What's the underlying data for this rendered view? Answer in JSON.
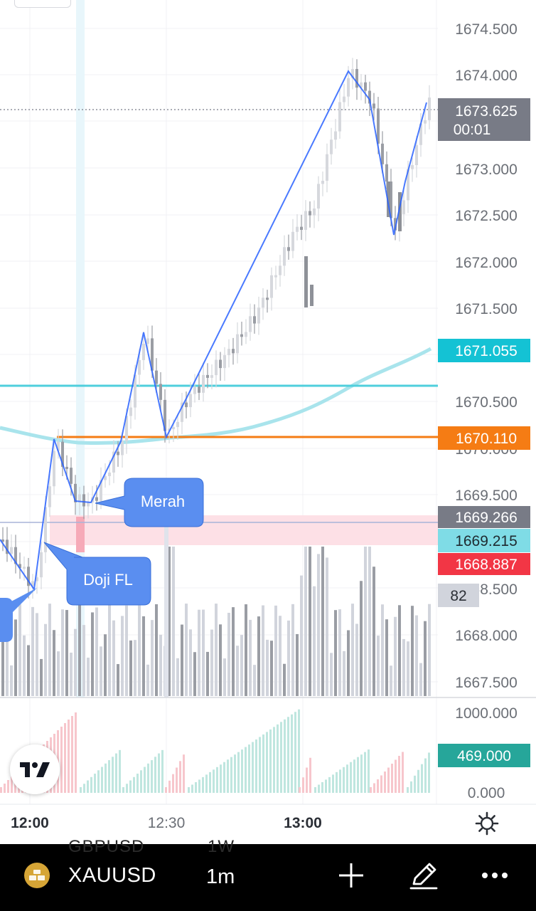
{
  "price_axis": {
    "labels": [
      "1674.500",
      "1674.000",
      "1673.000",
      "1672.500",
      "1672.000",
      "1671.500",
      "1670.500",
      "1670.000",
      "1669.500",
      "1668.500",
      "1668.000",
      "1667.500"
    ]
  },
  "volume_axis": {
    "labels": [
      "1000.000",
      "0.000"
    ]
  },
  "time_axis": {
    "labels": [
      {
        "text": "12:00",
        "bold": true
      },
      {
        "text": "12:30",
        "bold": false
      },
      {
        "text": "13:00",
        "bold": true
      }
    ]
  },
  "price_tags": {
    "last": {
      "value": "1673.625",
      "countdown": "00:01",
      "color": "#787b86"
    },
    "ma": {
      "value": "1671.055",
      "color": "#14c2d4"
    },
    "orange_line": {
      "value": "1670.110",
      "color": "#f57c14"
    },
    "crosshair": {
      "value": "1669.266",
      "color": "#787b86"
    },
    "cyan_low": {
      "value": "1669.215",
      "color": "#7fdce6"
    },
    "red": {
      "value": "1668.887",
      "color": "#f23645"
    },
    "volume_count": {
      "value": "82",
      "color": "#d1d4dc"
    },
    "indicator": {
      "value": "469.000",
      "color": "#26a69a"
    }
  },
  "callouts": {
    "merah": "Merah",
    "doji": "Doji FL"
  },
  "colors": {
    "zigzag": "#2962ff",
    "callout_bg": "#5a8ef0",
    "ma_line": "#a9e4ec",
    "cyan_hline": "#4fcfdc",
    "orange_hline": "#f57c14",
    "red_zone": "#fde0e6"
  },
  "bottom_bar": {
    "symbol": "XAUUSD",
    "timeframe": "1m",
    "ghost_symbol": "GBPUSD",
    "ghost_tf": "1W",
    "icons": [
      "gold-coin-icon",
      "plus-icon",
      "pencil-icon",
      "more-icon"
    ]
  }
}
